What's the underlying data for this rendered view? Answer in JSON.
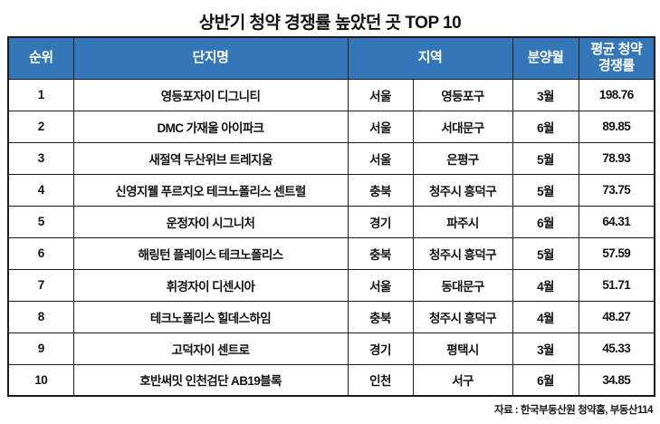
{
  "title": "상반기 청약 경쟁률 높았던 곳 TOP 10",
  "source": "자료 : 한국부동산원 청약홈, 부동산114",
  "accent_color": "#3377b9",
  "table": {
    "headers": {
      "rank": "순위",
      "complex": "단지명",
      "region": "지역",
      "month": "분양월",
      "rate_line1": "평균 청약",
      "rate_line2": "경쟁률"
    },
    "rows": [
      {
        "rank": "1",
        "complex": "영등포자이 디그니티",
        "province": "서울",
        "district": "영등포구",
        "month": "3월",
        "rate": "198.76"
      },
      {
        "rank": "2",
        "complex": "DMC 가재울 아이파크",
        "province": "서울",
        "district": "서대문구",
        "month": "6월",
        "rate": "89.85"
      },
      {
        "rank": "3",
        "complex": "새절역 두산위브 트레지움",
        "province": "서울",
        "district": "은평구",
        "month": "5월",
        "rate": "78.93"
      },
      {
        "rank": "4",
        "complex": "신영지웰 푸르지오 테크노폴리스 센트럴",
        "province": "충북",
        "district": "청주시 흥덕구",
        "month": "5월",
        "rate": "73.75"
      },
      {
        "rank": "5",
        "complex": "운정자이 시그니처",
        "province": "경기",
        "district": "파주시",
        "month": "6월",
        "rate": "64.31"
      },
      {
        "rank": "6",
        "complex": "해링턴 플레이스 테크노폴리스",
        "province": "충북",
        "district": "청주시 흥덕구",
        "month": "5월",
        "rate": "57.59"
      },
      {
        "rank": "7",
        "complex": "휘경자이 디센시아",
        "province": "서울",
        "district": "동대문구",
        "month": "4월",
        "rate": "51.71"
      },
      {
        "rank": "8",
        "complex": "테크노폴리스 힐데스하임",
        "province": "충북",
        "district": "청주시 흥덕구",
        "month": "4월",
        "rate": "48.27"
      },
      {
        "rank": "9",
        "complex": "고덕자이 센트로",
        "province": "경기",
        "district": "평택시",
        "month": "3월",
        "rate": "45.33"
      },
      {
        "rank": "10",
        "complex": "호반써밋 인천검단 AB19블록",
        "province": "인천",
        "district": "서구",
        "month": "6월",
        "rate": "34.85"
      }
    ]
  }
}
